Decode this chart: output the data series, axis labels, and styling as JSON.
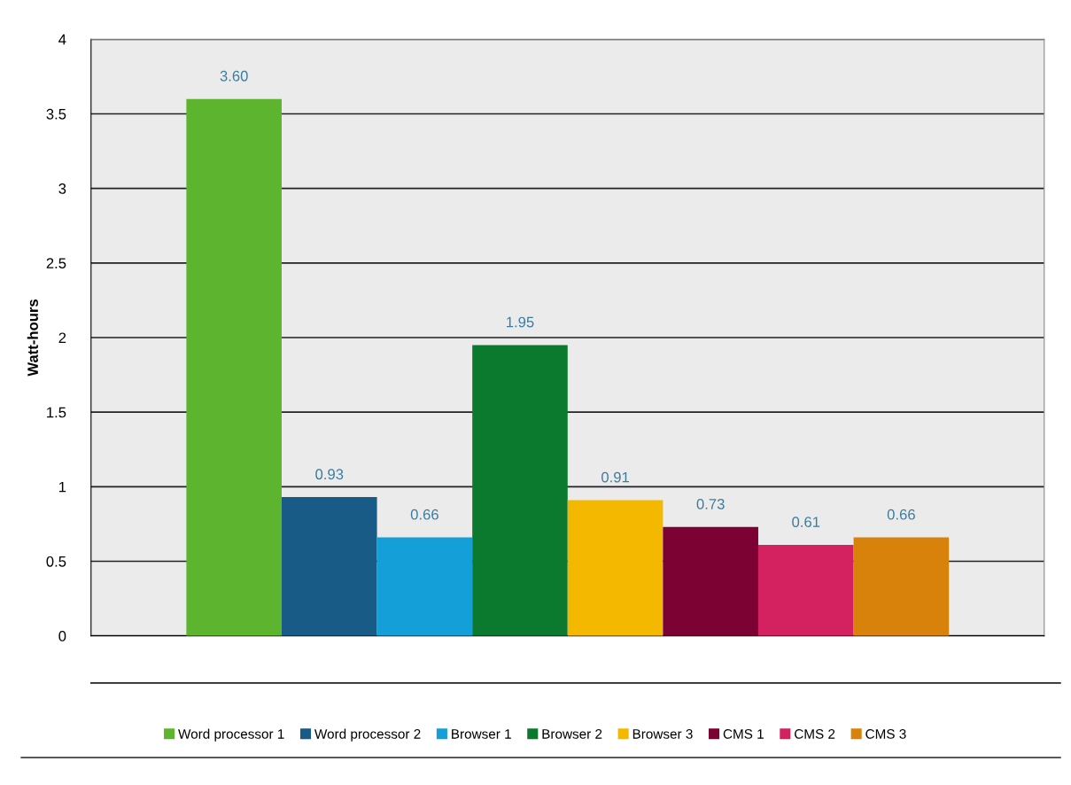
{
  "chart_data": {
    "type": "bar",
    "ylabel": "Watt-hours",
    "categories": [
      null
    ],
    "series": [
      {
        "name": "Word processor 1",
        "color": "#5db52f",
        "values": [
          3.6
        ],
        "value_labels": [
          "3.60"
        ]
      },
      {
        "name": "Word processor 2",
        "color": "#175b86",
        "values": [
          0.93
        ],
        "value_labels": [
          "0.93"
        ]
      },
      {
        "name": "Browser 1",
        "color": "#159fd8",
        "values": [
          0.66
        ],
        "value_labels": [
          "0.66"
        ]
      },
      {
        "name": "Browser 2",
        "color": "#0b7a2e",
        "values": [
          1.95
        ],
        "value_labels": [
          "1.95"
        ]
      },
      {
        "name": "Browser 3",
        "color": "#f5b800",
        "values": [
          0.91
        ],
        "value_labels": [
          "0.91"
        ]
      },
      {
        "name": "CMS 1",
        "color": "#7c0233",
        "values": [
          0.73
        ],
        "value_labels": [
          "0.73"
        ]
      },
      {
        "name": "CMS 2",
        "color": "#d3225f",
        "values": [
          0.61
        ],
        "value_labels": [
          "0.61"
        ]
      },
      {
        "name": "CMS 3",
        "color": "#d9820b",
        "values": [
          0.66
        ],
        "value_labels": [
          "0.66"
        ]
      }
    ],
    "ylim": [
      0,
      4
    ],
    "yticks": [
      0,
      0.5,
      1,
      1.5,
      2,
      2.5,
      3,
      3.5,
      4
    ],
    "grid": "y",
    "legend": "bottom"
  }
}
